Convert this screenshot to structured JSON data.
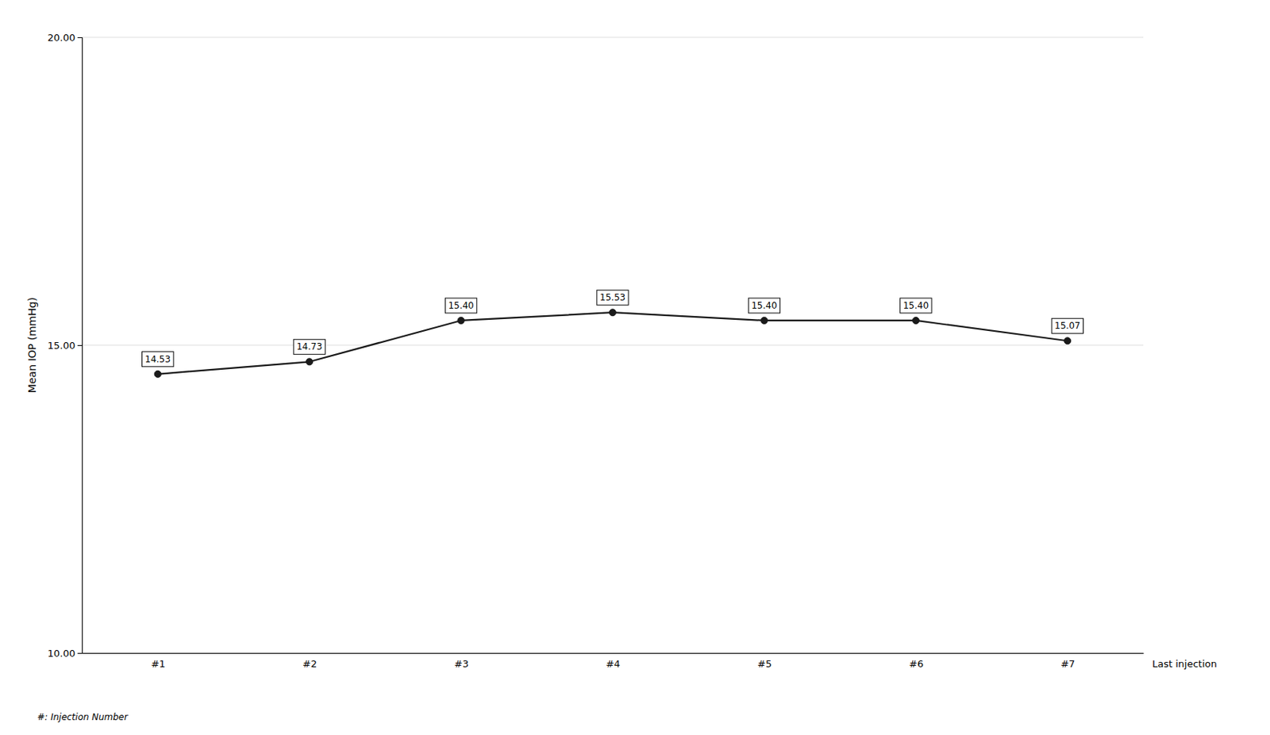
{
  "chart_data": {
    "type": "line",
    "categories": [
      "#1",
      "#2",
      "#3",
      "#4",
      "#5",
      "#6",
      "#7"
    ],
    "values": [
      14.53,
      14.73,
      15.4,
      15.53,
      15.4,
      15.4,
      15.07
    ],
    "data_labels": true,
    "value_labels": [
      "14.53",
      "14.73",
      "15.40",
      "15.53",
      "15.40",
      "15.40",
      "15.07"
    ],
    "y_label": "Mean IOP (mmHg)",
    "ylim": [
      10.0,
      20.0
    ],
    "yticks": [
      {
        "value": 10.0,
        "label": "10.00"
      },
      {
        "value": 15.0,
        "label": "15.00"
      },
      {
        "value": 20.0,
        "label": "20.00"
      }
    ],
    "grid": true,
    "color": "#1a1a1a",
    "marker": "circle",
    "annotations": [
      "Last injection"
    ],
    "footnote": "#: Injection Number"
  }
}
